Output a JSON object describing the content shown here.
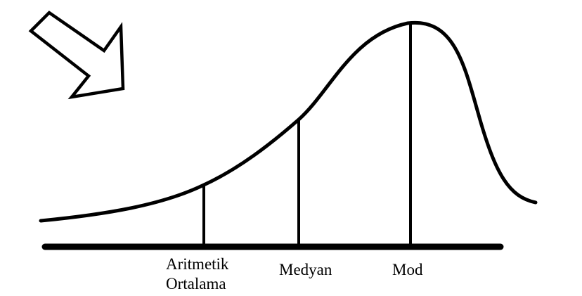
{
  "labels": {
    "mean_line1": "Aritmetik",
    "mean_line2": "Ortalama",
    "median": "Medyan",
    "mode": "Mod"
  },
  "colors": {
    "ink": "#000000",
    "background": "#ffffff"
  },
  "icons": {
    "pointer": "arrow-down-right-icon"
  }
}
